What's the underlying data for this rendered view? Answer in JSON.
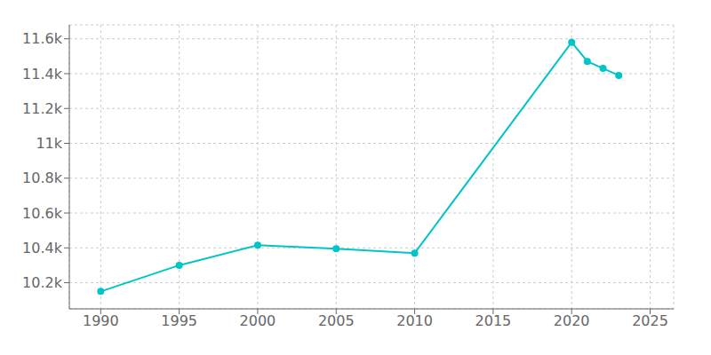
{
  "chart_data": {
    "type": "line",
    "x": [
      1990,
      1995,
      2000,
      2005,
      2010,
      2020,
      2021,
      2022,
      2023
    ],
    "values": [
      10150,
      10300,
      10415,
      10395,
      10370,
      11580,
      11470,
      11430,
      11390
    ],
    "color": "#00C5C8",
    "marker": "circle",
    "xlim": [
      1988,
      2026.5
    ],
    "ylim": [
      10050,
      11680
    ],
    "xticks": [
      1990,
      1995,
      2000,
      2005,
      2010,
      2015,
      2020,
      2025
    ],
    "yticks": [
      {
        "value": 10200,
        "label": "10.2k"
      },
      {
        "value": 10400,
        "label": "10.4k"
      },
      {
        "value": 10600,
        "label": "10.6k"
      },
      {
        "value": 10800,
        "label": "10.8k"
      },
      {
        "value": 11000,
        "label": "11k"
      },
      {
        "value": 11200,
        "label": "11.2k"
      },
      {
        "value": 11400,
        "label": "11.4k"
      },
      {
        "value": 11600,
        "label": "11.6k"
      }
    ],
    "grid": true
  }
}
